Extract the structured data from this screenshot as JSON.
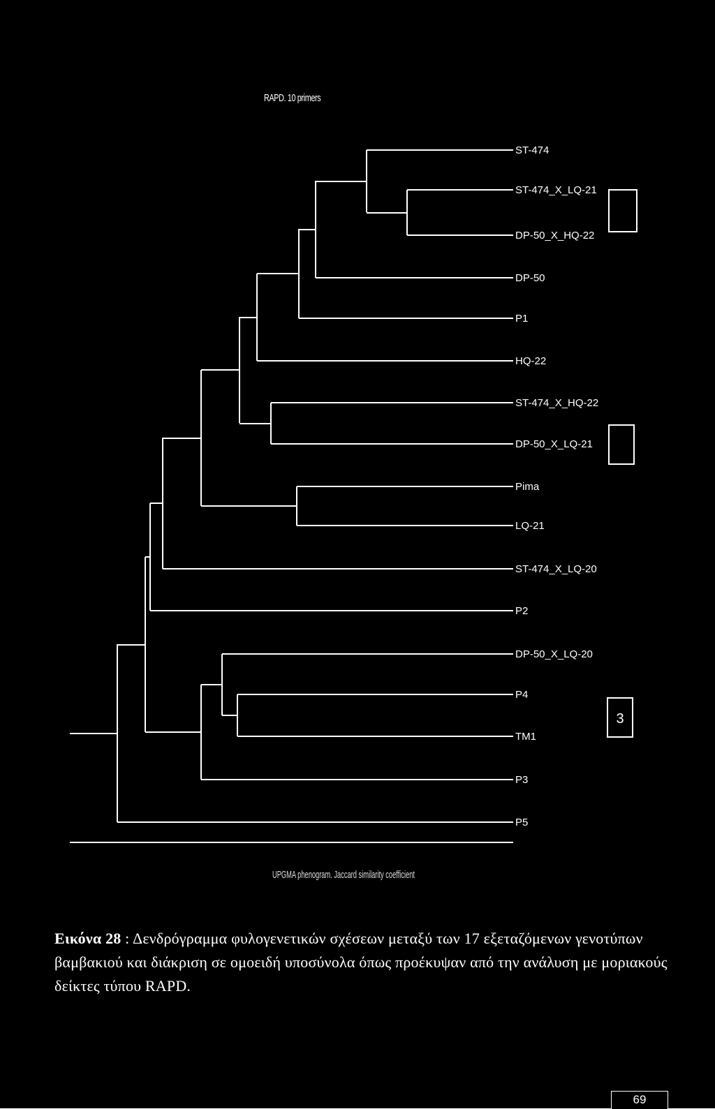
{
  "dendrogram": {
    "title": "RAPD. 10 primers",
    "footer": "UPGMA phenogram. Jaccard similarity coefficient",
    "leaves": [
      "ST-474",
      "ST-474_X_LQ-21",
      "DP-50_X_HQ-22",
      "DP-50",
      "P1",
      "HQ-22",
      "ST-474_X_HQ-22",
      "DP-50_X_LQ-21",
      "Pima",
      "LQ-21",
      "ST-474_X_LQ-20",
      "P2",
      "DP-50_X_LQ-20",
      "P4",
      "TM1",
      "P3",
      "P5"
    ],
    "group_boxes": [
      "",
      "",
      "3"
    ]
  },
  "caption": {
    "label": "Εικόνα 28",
    "separator": " : ",
    "text": "Δενδρόγραμμα φυλογενετικών σχέσεων μεταξύ των 17 εξεταζόμενων γενοτύπων βαμβακιού και διάκριση σε ομοειδή υποσύνολα όπως προέκυψαν από την ανάλυση με μοριακούς δείκτες τύπου RAPD."
  },
  "page_number": "69"
}
